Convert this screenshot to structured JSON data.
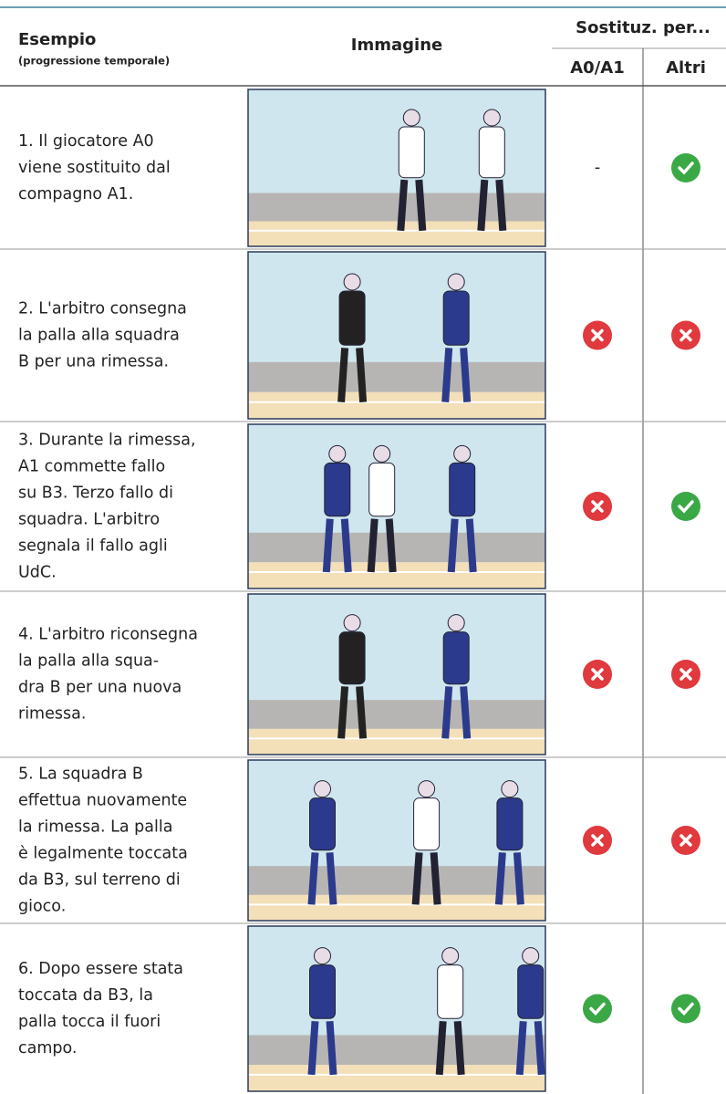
{
  "header": {
    "example": "Esempio",
    "example_note": "(progressione temporale)",
    "image": "Immagine",
    "substitution": "Sostituz. per...",
    "a0_a1": "A0/A1",
    "others": "Altri"
  },
  "rows": [
    {
      "lines": [
        "1. Il giocatore A0",
        "viene sostituito dal",
        "compagno A1."
      ],
      "a0_a1": "-",
      "others": true
    },
    {
      "lines": [
        "2. L'arbitro consegna",
        "la palla alla squadra",
        "B per una rimessa."
      ],
      "a0_a1": false,
      "others": false
    },
    {
      "lines": [
        "3. Durante la rimessa,",
        "A1 commette fallo",
        "su B3. Terzo fallo di",
        "squadra. L'arbitro",
        "segnala il fallo agli",
        "UdC."
      ],
      "a0_a1": false,
      "others": true
    },
    {
      "lines": [
        "4. L'arbitro riconsegna",
        "la palla alla squa-",
        "dra B per una nuova",
        "rimessa."
      ],
      "a0_a1": false,
      "others": false
    },
    {
      "lines": [
        "5. La squadra B",
        "effettua nuovamente",
        "la rimessa. La palla",
        "è legalmente toccata",
        "da B3, sul terreno di",
        "gioco."
      ],
      "a0_a1": false,
      "others": false
    },
    {
      "lines": [
        "6. Dopo essere stata",
        "toccata da B3, la",
        "palla tocca il fuori",
        "campo."
      ],
      "a0_a1": true,
      "others": true
    }
  ]
}
